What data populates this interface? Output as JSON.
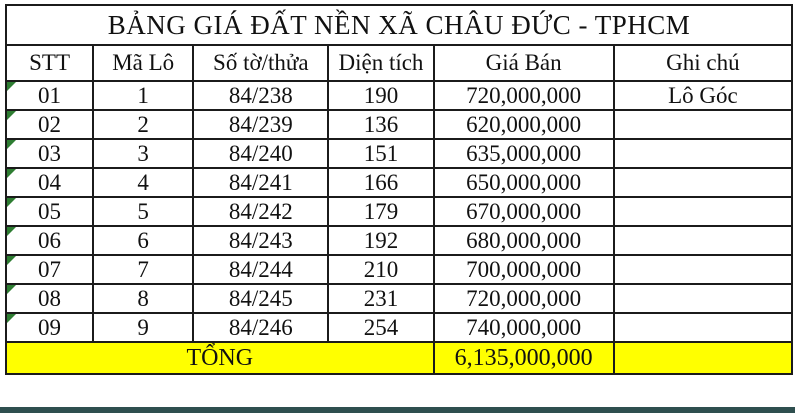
{
  "title": "BẢNG GIÁ ĐẤT NỀN XÃ CHÂU ĐỨC - TPHCM",
  "table": {
    "columns": [
      "STT",
      "Mã Lô",
      "Số tờ/thửa",
      "Diện tích",
      "Giá Bán",
      "Ghi chú"
    ],
    "rows": [
      {
        "stt": "01",
        "ma_lo": "1",
        "so_to_thua": "84/238",
        "dien_tich": "190",
        "gia_ban": "720,000,000",
        "ghi_chu": "Lô Góc"
      },
      {
        "stt": "02",
        "ma_lo": "2",
        "so_to_thua": "84/239",
        "dien_tich": "136",
        "gia_ban": "620,000,000",
        "ghi_chu": ""
      },
      {
        "stt": "03",
        "ma_lo": "3",
        "so_to_thua": "84/240",
        "dien_tich": "151",
        "gia_ban": "635,000,000",
        "ghi_chu": ""
      },
      {
        "stt": "04",
        "ma_lo": "4",
        "so_to_thua": "84/241",
        "dien_tich": "166",
        "gia_ban": "650,000,000",
        "ghi_chu": ""
      },
      {
        "stt": "05",
        "ma_lo": "5",
        "so_to_thua": "84/242",
        "dien_tich": "179",
        "gia_ban": "670,000,000",
        "ghi_chu": ""
      },
      {
        "stt": "06",
        "ma_lo": "6",
        "so_to_thua": "84/243",
        "dien_tich": "192",
        "gia_ban": "680,000,000",
        "ghi_chu": ""
      },
      {
        "stt": "07",
        "ma_lo": "7",
        "so_to_thua": "84/244",
        "dien_tich": "210",
        "gia_ban": "700,000,000",
        "ghi_chu": ""
      },
      {
        "stt": "08",
        "ma_lo": "8",
        "so_to_thua": "84/245",
        "dien_tich": "231",
        "gia_ban": "720,000,000",
        "ghi_chu": ""
      },
      {
        "stt": "09",
        "ma_lo": "9",
        "so_to_thua": "84/246",
        "dien_tich": "254",
        "gia_ban": "740,000,000",
        "ghi_chu": ""
      }
    ],
    "total_label": "TỔNG",
    "total_value": "6,135,000,000"
  },
  "colors": {
    "highlight": "#FFFF00",
    "triangle_green": "#2E7D32",
    "bottom_bar": "#2F4F4F",
    "border": "#1B1B1B",
    "text": "#111111"
  }
}
